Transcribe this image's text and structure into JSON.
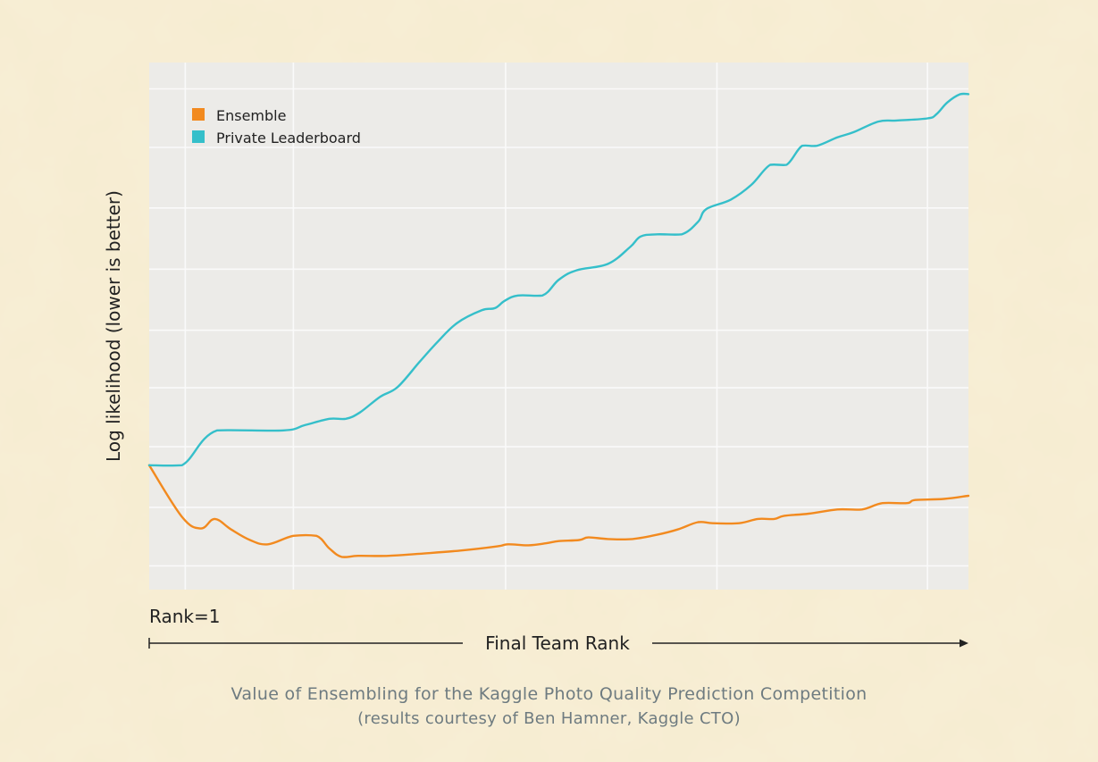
{
  "chart_data": {
    "type": "line",
    "ylabel": "Log likelihood (lower is better)",
    "xlabel": "Final Team Rank",
    "x_start_label": "Rank=1",
    "xlim": [
      0,
      100
    ],
    "ylim": [
      0,
      100
    ],
    "grid": true,
    "legend_position": "top-left",
    "series": [
      {
        "name": "Ensemble",
        "color": "#f28a1f",
        "points": [
          [
            0,
            23.6
          ],
          [
            4,
            13.8
          ],
          [
            6.3,
            11.6
          ],
          [
            8,
            13.4
          ],
          [
            10,
            11.4
          ],
          [
            12.3,
            9.4
          ],
          [
            14.5,
            8.6
          ],
          [
            17.6,
            10.2
          ],
          [
            20.4,
            10.2
          ],
          [
            22,
            7.8
          ],
          [
            23.5,
            6.2
          ],
          [
            25.5,
            6.4
          ],
          [
            29.2,
            6.4
          ],
          [
            33,
            6.8
          ],
          [
            38,
            7.4
          ],
          [
            42.5,
            8.2
          ],
          [
            43.8,
            8.6
          ],
          [
            46.3,
            8.4
          ],
          [
            48.5,
            8.8
          ],
          [
            50,
            9.2
          ],
          [
            52.5,
            9.4
          ],
          [
            53.6,
            9.9
          ],
          [
            56,
            9.6
          ],
          [
            59,
            9.6
          ],
          [
            62,
            10.4
          ],
          [
            64.5,
            11.4
          ],
          [
            67,
            12.8
          ],
          [
            68.8,
            12.6
          ],
          [
            72,
            12.6
          ],
          [
            74.3,
            13.4
          ],
          [
            76.3,
            13.4
          ],
          [
            77.5,
            14
          ],
          [
            80.5,
            14.4
          ],
          [
            84,
            15.2
          ],
          [
            87,
            15.2
          ],
          [
            89.5,
            16.4
          ],
          [
            92.5,
            16.4
          ],
          [
            93.5,
            17
          ],
          [
            97,
            17.2
          ],
          [
            100,
            17.8
          ]
        ]
      },
      {
        "name": "Private Leaderboard",
        "color": "#35bfca",
        "points": [
          [
            0,
            23.6
          ],
          [
            4,
            23.6
          ],
          [
            8.3,
            30.2
          ],
          [
            16.4,
            30.2
          ],
          [
            19,
            31.2
          ],
          [
            22,
            32.4
          ],
          [
            24,
            32.4
          ],
          [
            25.7,
            33.6
          ],
          [
            28.2,
            36.6
          ],
          [
            30.3,
            38.4
          ],
          [
            33,
            43.2
          ],
          [
            35.2,
            47
          ],
          [
            37.6,
            50.6
          ],
          [
            40.6,
            53
          ],
          [
            42.2,
            53.4
          ],
          [
            43.4,
            54.8
          ],
          [
            45,
            55.8
          ],
          [
            48,
            55.8
          ],
          [
            50,
            58.8
          ],
          [
            52.2,
            60.6
          ],
          [
            56,
            61.8
          ],
          [
            58.7,
            65
          ],
          [
            60,
            67
          ],
          [
            62,
            67.4
          ],
          [
            65,
            67.4
          ],
          [
            67,
            69.8
          ],
          [
            68,
            72.2
          ],
          [
            71,
            74
          ],
          [
            73.5,
            76.8
          ],
          [
            75.8,
            80.6
          ],
          [
            77.8,
            80.6
          ],
          [
            79.7,
            84.2
          ],
          [
            81.5,
            84.2
          ],
          [
            84,
            85.8
          ],
          [
            86,
            86.8
          ],
          [
            89,
            88.8
          ],
          [
            91.2,
            89
          ],
          [
            95,
            89.4
          ],
          [
            96.1,
            90.2
          ],
          [
            97.4,
            92.4
          ],
          [
            99,
            94
          ],
          [
            100,
            94
          ]
        ]
      }
    ]
  },
  "caption": {
    "title": "Value of Ensembling for the Kaggle Photo Quality Prediction Competition",
    "subtitle": "(results courtesy of Ben Hamner, Kaggle CTO)"
  },
  "colors": {
    "plot_background": "#ecebe8",
    "gridline": "#fafafa",
    "axis_text": "#222222",
    "caption_text": "#6e7b80"
  }
}
